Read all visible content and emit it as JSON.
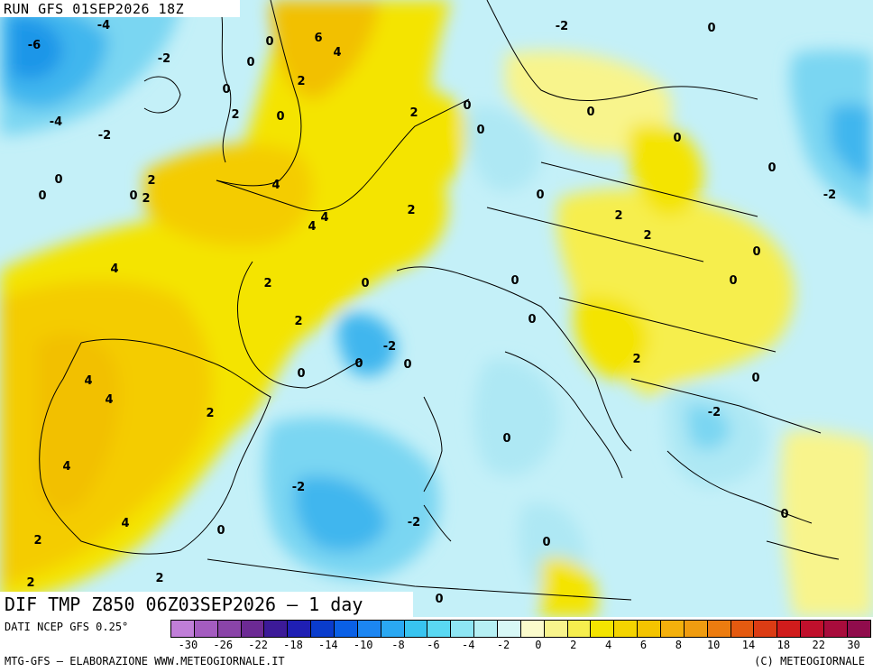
{
  "header": {
    "run": "RUN GFS 01SEP2026 18Z"
  },
  "title": "DIF TMP Z850 06Z03SEP2026 — 1 day",
  "source": "DATI NCEP GFS 0.25°",
  "footer": {
    "left": "MTG-GFS — ELABORAZIONE WWW.METEOGIORNALE.IT",
    "right": "(C) METEOGIORNALE"
  },
  "legend": {
    "labels": [
      "-30",
      "-26",
      "-22",
      "-18",
      "-14",
      "-10",
      "-8",
      "-6",
      "-4",
      "-2",
      "0",
      "2",
      "4",
      "6",
      "8",
      "10",
      "14",
      "18",
      "22",
      "30"
    ],
    "colors": [
      "#c07ed8",
      "#a45cc0",
      "#8a44a8",
      "#6c2a94",
      "#3c1a98",
      "#1f1fb4",
      "#0a3ccc",
      "#0a60e6",
      "#1c86f2",
      "#2aa8f2",
      "#38c4f0",
      "#5ad8f2",
      "#8ee6f4",
      "#b6f0f4",
      "#d8f8f6",
      "#fbfbcc",
      "#f8f48c",
      "#f6ee4e",
      "#f4e400",
      "#f4d400",
      "#f4c400",
      "#f4b00c",
      "#f09c10",
      "#ec7c10",
      "#e45a10",
      "#dc3c14",
      "#d01c1c",
      "#c0102c",
      "#a80c3c",
      "#900c4c"
    ]
  },
  "map_labels": [
    "-6",
    "-4",
    "-4",
    "-2",
    "-2",
    "0",
    "0",
    "0",
    "2",
    "2",
    "0",
    "2",
    "6",
    "4",
    "2",
    "0",
    "2",
    "4",
    "4",
    "4",
    "2",
    "4",
    "2",
    "0",
    "2",
    "4",
    "4",
    "2",
    "0",
    "-2",
    "0",
    "0",
    "0",
    "2",
    "4",
    "4",
    "2",
    "2",
    "0",
    "0",
    "-2",
    "2",
    "-2",
    "0",
    "0",
    "-2",
    "0",
    "0",
    "2",
    "0",
    "0",
    "0",
    "0",
    "0",
    "2",
    "2",
    "0",
    "0",
    "-2",
    "0",
    "0",
    "2",
    "0",
    "-2",
    "0",
    "0",
    "-2",
    "0",
    "0"
  ],
  "palette": {
    "sea_neutral": "#c4f0f8",
    "land_slight_warm": "#f6f4b0",
    "warm_2": "#f4ec00",
    "warm_4": "#f4d800",
    "warm_6": "#f2c000",
    "cool_light": "#aee8f4",
    "cool_mid": "#7ad6f2",
    "cool_deep": "#3fb6ee",
    "cool_strong": "#1e96e8",
    "borders": "#000000"
  }
}
